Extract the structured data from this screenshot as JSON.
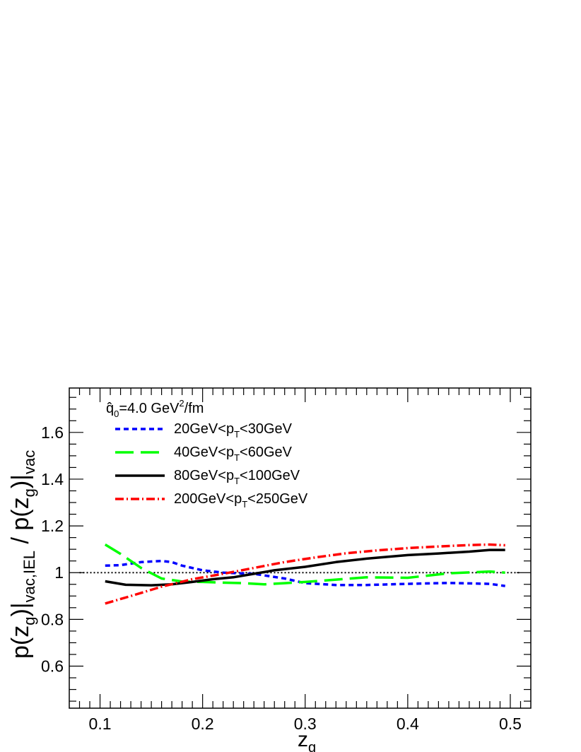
{
  "chart_data": {
    "type": "line",
    "title": "",
    "xlabel": "z",
    "xlabel_sub": "g",
    "ylabel": {
      "parts": [
        "p(z",
        "g",
        ")|",
        "vac,IEL",
        " / p(z",
        "g",
        ")|",
        "vac"
      ]
    },
    "xlim": [
      0.07,
      0.52
    ],
    "ylim": [
      0.42,
      1.79
    ],
    "x_ticks": [
      0.1,
      0.2,
      0.3,
      0.4,
      0.5
    ],
    "x_tick_labels": [
      "0.1",
      "0.2",
      "0.3",
      "0.4",
      "0.5"
    ],
    "y_ticks": [
      0.6,
      0.8,
      1.0,
      1.2,
      1.4,
      1.6
    ],
    "y_tick_labels": [
      "0.6",
      "0.8",
      "1",
      "1.2",
      "1.4",
      "1.6"
    ],
    "reference_line": 1.0,
    "grid": false,
    "legend_placement": "top-left",
    "legend_header": {
      "base": "q̂",
      "sub": "0",
      "rest": "=4.0 GeV",
      "sup": "2",
      "tail": "/fm"
    },
    "series": [
      {
        "name": "20GeV<pT<30GeV",
        "label_parts": [
          "20GeV<p",
          "T",
          "<30GeV"
        ],
        "color": "#0000ff",
        "style": "short-dash",
        "x": [
          0.105,
          0.12,
          0.14,
          0.16,
          0.17,
          0.18,
          0.2,
          0.22,
          0.25,
          0.28,
          0.3,
          0.33,
          0.36,
          0.4,
          0.44,
          0.48,
          0.495
        ],
        "y": [
          1.03,
          1.032,
          1.045,
          1.05,
          1.045,
          1.03,
          1.01,
          1.0,
          0.995,
          0.975,
          0.955,
          0.947,
          0.947,
          0.952,
          0.956,
          0.952,
          0.943
        ]
      },
      {
        "name": "40GeV<pT<60GeV",
        "label_parts": [
          "40GeV<p",
          "T",
          "<60GeV"
        ],
        "color": "#00ff00",
        "style": "long-dash",
        "x": [
          0.105,
          0.12,
          0.14,
          0.16,
          0.18,
          0.2,
          0.22,
          0.24,
          0.26,
          0.28,
          0.3,
          0.33,
          0.36,
          0.4,
          0.44,
          0.48,
          0.495
        ],
        "y": [
          1.12,
          1.08,
          1.02,
          0.975,
          0.962,
          0.96,
          0.957,
          0.955,
          0.95,
          0.955,
          0.96,
          0.97,
          0.98,
          0.978,
          0.997,
          1.005,
          1.0
        ]
      },
      {
        "name": "80GeV<pT<100GeV",
        "label_parts": [
          "80GeV<p",
          "T",
          "<100GeV"
        ],
        "color": "#000000",
        "style": "solid",
        "x": [
          0.105,
          0.125,
          0.15,
          0.17,
          0.19,
          0.21,
          0.23,
          0.25,
          0.27,
          0.3,
          0.33,
          0.36,
          0.4,
          0.43,
          0.46,
          0.48,
          0.495
        ],
        "y": [
          0.963,
          0.948,
          0.946,
          0.95,
          0.96,
          0.972,
          0.98,
          0.995,
          1.01,
          1.025,
          1.045,
          1.06,
          1.075,
          1.082,
          1.09,
          1.097,
          1.097
        ]
      },
      {
        "name": "200GeV<pT<250GeV",
        "label_parts": [
          "200GeV<p",
          "T",
          "<250GeV"
        ],
        "color": "#ff0000",
        "style": "dash-dot",
        "x": [
          0.105,
          0.13,
          0.16,
          0.19,
          0.22,
          0.25,
          0.28,
          0.31,
          0.34,
          0.37,
          0.4,
          0.43,
          0.46,
          0.48,
          0.495
        ],
        "y": [
          0.868,
          0.9,
          0.94,
          0.972,
          0.995,
          1.02,
          1.045,
          1.065,
          1.083,
          1.095,
          1.105,
          1.112,
          1.118,
          1.12,
          1.117
        ]
      }
    ]
  }
}
